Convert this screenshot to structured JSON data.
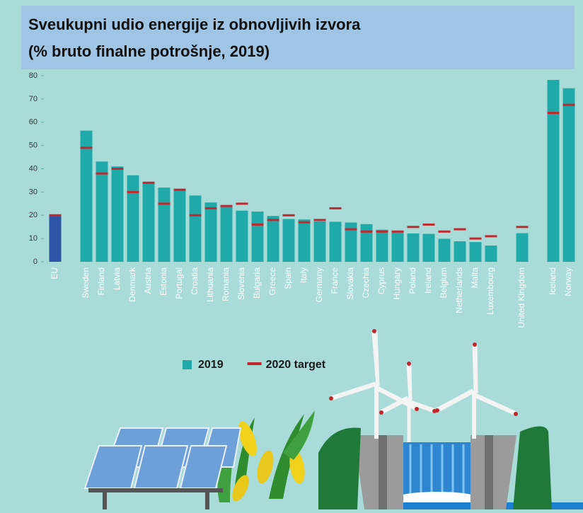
{
  "chart_data": {
    "type": "bar",
    "title_lines": [
      "Sveukupni udio energije iz obnovljivih izvora",
      "(% bruto finalne potrošnje, 2019)"
    ],
    "categories": [
      "EU",
      null,
      "Sweden",
      "Finland",
      "Latvia",
      "Denmark",
      "Austria",
      "Estonia",
      "Portugal",
      "Croatia",
      "Lithuania",
      "Romania",
      "Slovenia",
      "Bulgaria",
      "Greece",
      "Spain",
      "Italy",
      "Germany",
      "France",
      "Slovakia",
      "Czechia",
      "Cyprus",
      "Hungary",
      "Poland",
      "Ireland",
      "Belgium",
      "Netherlands",
      "Malta",
      "Luxembourg",
      null,
      "United Kingdom",
      null,
      "Iceland",
      "Norway"
    ],
    "series": [
      {
        "name": "2019",
        "color": "#1fa9a8",
        "kind": "bar",
        "colors": [
          "#2d55a6",
          null,
          "#1fa9a8",
          "#1fa9a8",
          "#1fa9a8",
          "#1fa9a8",
          "#1fa9a8",
          "#1fa9a8",
          "#1fa9a8",
          "#1fa9a8",
          "#1fa9a8",
          "#1fa9a8",
          "#1fa9a8",
          "#1fa9a8",
          "#1fa9a8",
          "#1fa9a8",
          "#1fa9a8",
          "#1fa9a8",
          "#1fa9a8",
          "#1fa9a8",
          "#1fa9a8",
          "#1fa9a8",
          "#1fa9a8",
          "#1fa9a8",
          "#1fa9a8",
          "#1fa9a8",
          "#1fa9a8",
          "#1fa9a8",
          "#1fa9a8",
          null,
          "#1fa9a8",
          null,
          "#1fa9a8",
          "#1fa9a8"
        ],
        "values": [
          19.7,
          null,
          56.4,
          43.1,
          41.0,
          37.2,
          33.6,
          31.9,
          30.6,
          28.5,
          25.5,
          24.3,
          22.0,
          21.6,
          19.7,
          18.4,
          18.2,
          17.4,
          17.2,
          16.9,
          16.2,
          13.8,
          12.6,
          12.2,
          12.0,
          9.9,
          8.8,
          8.5,
          7.0,
          null,
          12.3,
          null,
          78.2,
          74.6
        ]
      },
      {
        "name": "2020 target",
        "color": "#c0282d",
        "kind": "marker",
        "values": [
          20,
          null,
          49,
          38,
          40,
          30,
          34,
          25,
          31,
          20,
          23,
          24,
          25,
          16,
          18,
          20,
          17,
          18,
          23,
          14,
          13,
          13,
          13,
          15,
          16,
          13,
          14,
          10,
          11,
          null,
          15,
          null,
          64,
          67.5
        ]
      }
    ],
    "ylim": [
      0,
      80
    ],
    "yticks": [
      0,
      10,
      20,
      30,
      40,
      50,
      60,
      70,
      80
    ],
    "grid": false
  }
}
